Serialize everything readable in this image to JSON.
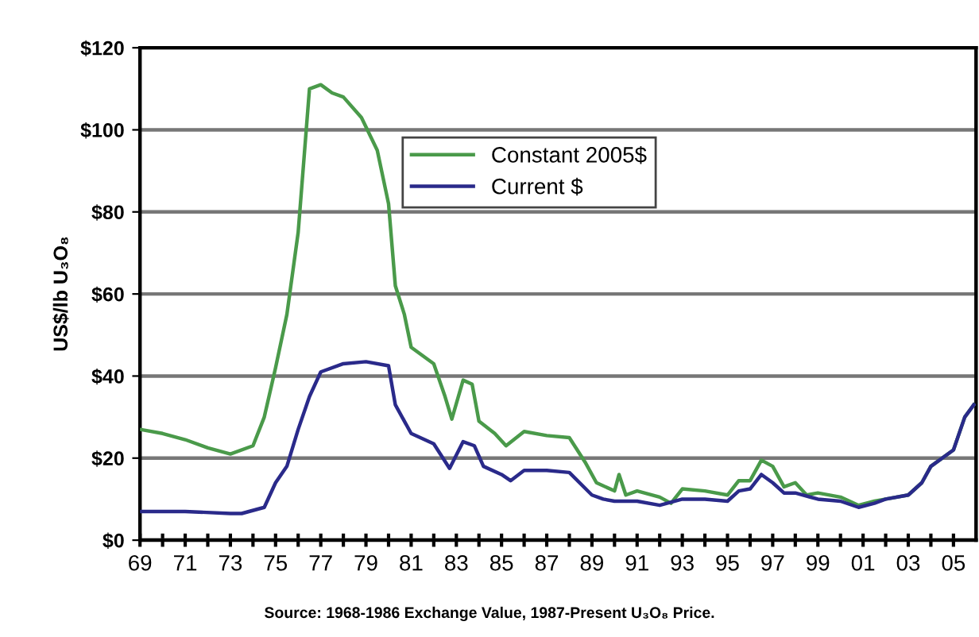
{
  "chart_data": {
    "type": "line",
    "ylabel": "US$/lb U₃O₈",
    "xlim": [
      1969,
      2006
    ],
    "ylim": [
      0,
      120
    ],
    "xticks": [
      {
        "value": 1969,
        "label": "69"
      },
      {
        "value": 1970,
        "label": null
      },
      {
        "value": 1971,
        "label": "71"
      },
      {
        "value": 1972,
        "label": null
      },
      {
        "value": 1973,
        "label": "73"
      },
      {
        "value": 1974,
        "label": null
      },
      {
        "value": 1975,
        "label": "75"
      },
      {
        "value": 1976,
        "label": null
      },
      {
        "value": 1977,
        "label": "77"
      },
      {
        "value": 1978,
        "label": null
      },
      {
        "value": 1979,
        "label": "79"
      },
      {
        "value": 1980,
        "label": null
      },
      {
        "value": 1981,
        "label": "81"
      },
      {
        "value": 1982,
        "label": null
      },
      {
        "value": 1983,
        "label": "83"
      },
      {
        "value": 1984,
        "label": null
      },
      {
        "value": 1985,
        "label": "85"
      },
      {
        "value": 1986,
        "label": null
      },
      {
        "value": 1987,
        "label": "87"
      },
      {
        "value": 1988,
        "label": null
      },
      {
        "value": 1989,
        "label": "89"
      },
      {
        "value": 1990,
        "label": null
      },
      {
        "value": 1991,
        "label": "91"
      },
      {
        "value": 1992,
        "label": null
      },
      {
        "value": 1993,
        "label": "93"
      },
      {
        "value": 1994,
        "label": null
      },
      {
        "value": 1995,
        "label": "95"
      },
      {
        "value": 1996,
        "label": null
      },
      {
        "value": 1997,
        "label": "97"
      },
      {
        "value": 1998,
        "label": null
      },
      {
        "value": 1999,
        "label": "99"
      },
      {
        "value": 2000,
        "label": null
      },
      {
        "value": 2001,
        "label": "01"
      },
      {
        "value": 2002,
        "label": null
      },
      {
        "value": 2003,
        "label": "03"
      },
      {
        "value": 2004,
        "label": null
      },
      {
        "value": 2005,
        "label": "05"
      }
    ],
    "yticks": [
      {
        "value": 0,
        "label": "$0"
      },
      {
        "value": 20,
        "label": "$20"
      },
      {
        "value": 40,
        "label": "$40"
      },
      {
        "value": 60,
        "label": "$60"
      },
      {
        "value": 80,
        "label": "$80"
      },
      {
        "value": 100,
        "label": "$100"
      },
      {
        "value": 120,
        "label": "$120"
      }
    ],
    "grid": "y",
    "legend": "top right",
    "marker": "none",
    "line_style": "solid",
    "annotations": [
      "Source: 1968-1986 Exchange Value, 1987-Present U₃O₈ Price."
    ],
    "series": [
      {
        "name": "Constant 2005$",
        "color": "#4a9a4a",
        "x": [
          1969,
          1970,
          1971,
          1972,
          1973,
          1974,
          1974.5,
          1975,
          1975.5,
          1976,
          1976.5,
          1977,
          1977.5,
          1978,
          1978.8,
          1979.5,
          1980,
          1980.3,
          1980.7,
          1981,
          1982,
          1982.5,
          1982.8,
          1983.3,
          1983.7,
          1984,
          1984.7,
          1985.2,
          1986,
          1987,
          1988,
          1988.7,
          1989.2,
          1990,
          1990.2,
          1990.5,
          1991,
          1992,
          1992.5,
          1993,
          1994,
          1995,
          1995.5,
          1996,
          1996.5,
          1997,
          1997.5,
          1998,
          1998.5,
          1999,
          2000,
          2000.8,
          2001.5,
          2002,
          2003,
          2003.6,
          2004,
          2005,
          2005.5,
          2005.9
        ],
        "values": [
          27,
          26,
          24.5,
          22.5,
          21,
          23,
          30,
          42,
          55,
          75,
          110,
          111,
          109,
          108,
          103,
          95,
          82,
          62,
          55,
          47,
          43,
          35,
          29.5,
          39,
          38,
          29,
          26,
          23,
          26.5,
          25.5,
          25,
          19,
          14,
          12,
          16,
          11,
          12,
          10.5,
          9,
          12.5,
          12,
          11,
          14.5,
          14.5,
          19.5,
          18,
          13,
          14,
          11,
          11.5,
          10.5,
          8.5,
          9.5,
          10,
          11,
          14,
          18,
          22,
          30,
          33
        ]
      },
      {
        "name": "Current $",
        "color": "#2a2a8a",
        "x": [
          1969,
          1971,
          1973,
          1973.5,
          1974.5,
          1975,
          1975.5,
          1976,
          1976.5,
          1977,
          1978,
          1979,
          1980,
          1980.3,
          1981,
          1982,
          1982.7,
          1983.3,
          1983.8,
          1984.2,
          1985,
          1985.4,
          1986,
          1987,
          1988,
          1989,
          1989.5,
          1990,
          1991,
          1992,
          1993,
          1994,
          1995,
          1995.5,
          1996,
          1996.5,
          1997,
          1997.5,
          1998,
          1999,
          2000,
          2000.8,
          2001.5,
          2002,
          2003,
          2003.6,
          2004,
          2005,
          2005.5,
          2005.9
        ],
        "values": [
          7,
          7,
          6.5,
          6.5,
          8,
          14,
          18,
          27,
          35,
          41,
          43,
          43.5,
          42.5,
          33,
          26,
          23.5,
          17.5,
          24,
          23,
          18,
          16,
          14.5,
          17,
          17,
          16.5,
          11,
          10,
          9.5,
          9.5,
          8.5,
          10,
          10,
          9.5,
          12,
          12.5,
          16,
          14,
          11.5,
          11.5,
          10,
          9.5,
          8,
          9,
          10,
          11,
          14,
          18,
          22,
          30,
          33
        ]
      }
    ]
  }
}
